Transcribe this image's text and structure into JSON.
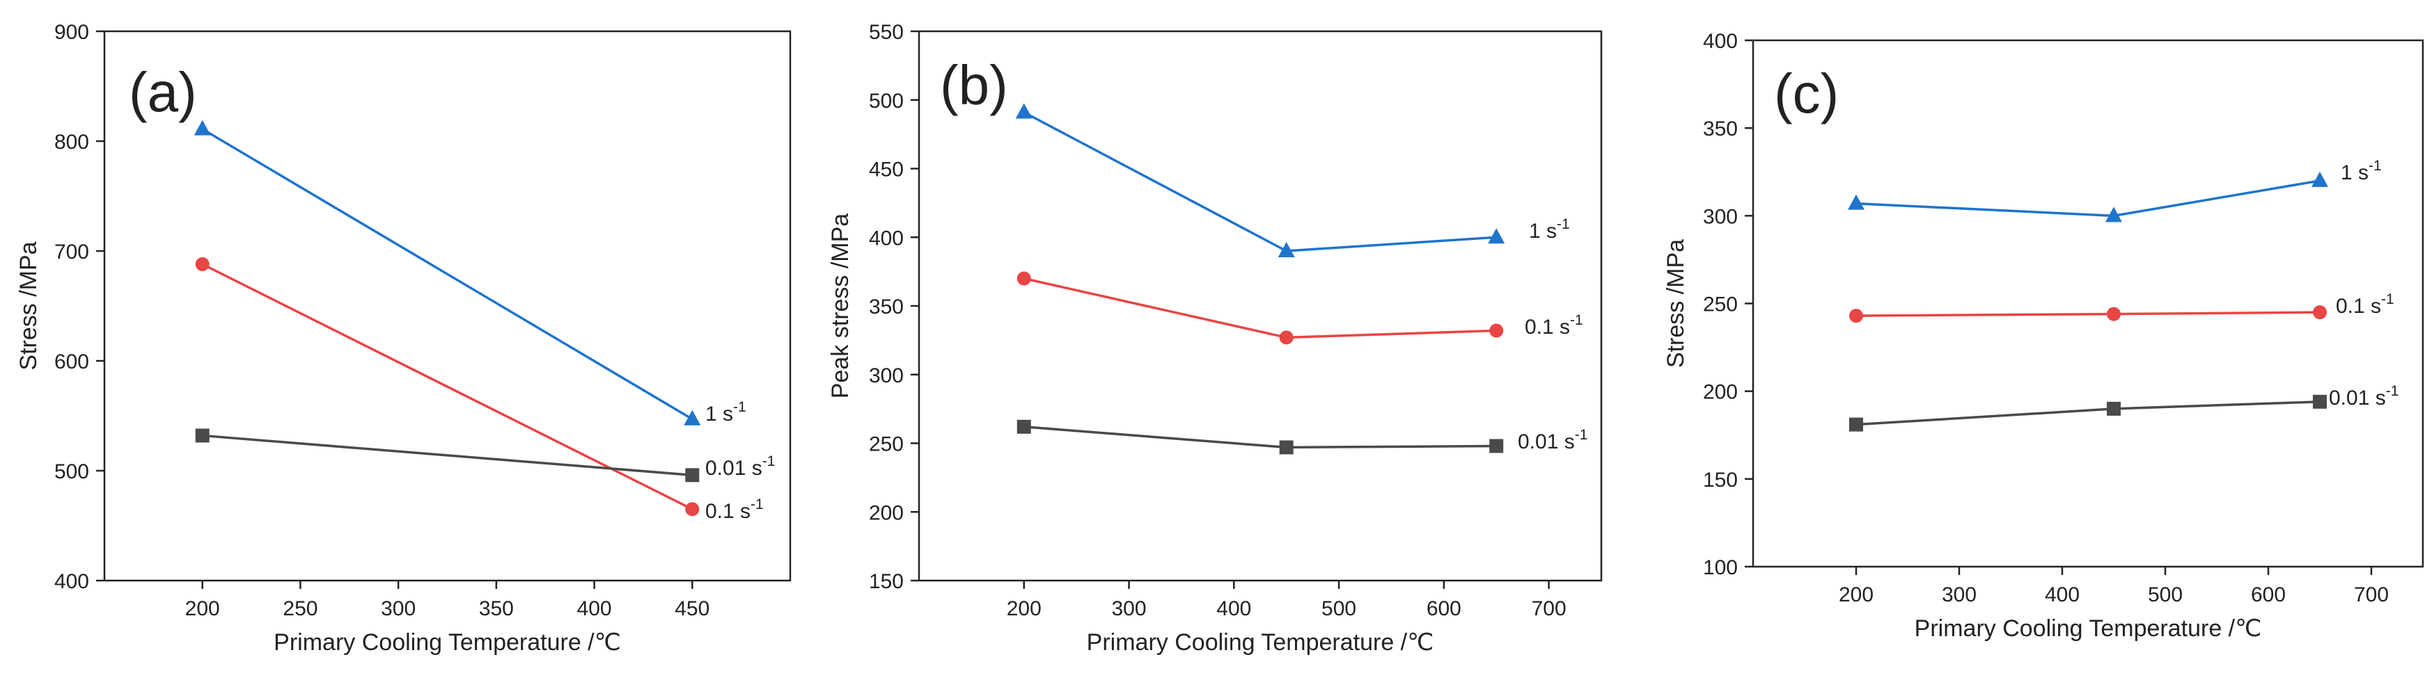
{
  "chart_data": [
    {
      "type": "line",
      "panel_label": "(a)",
      "xlabel": "Primary Cooling Temperature /℃",
      "ylabel": "Stress /MPa",
      "xlim": [
        150,
        500
      ],
      "ylim": [
        400,
        900
      ],
      "xticks": [
        200,
        250,
        300,
        350,
        400,
        450
      ],
      "yticks": [
        400,
        500,
        600,
        700,
        800,
        900
      ],
      "series": [
        {
          "name": "1 s",
          "exponent": "-1",
          "color": "#1f74cc",
          "marker": "triangle",
          "x": [
            200,
            450
          ],
          "values": [
            811,
            547
          ]
        },
        {
          "name": "0.1 s",
          "exponent": "-1",
          "color": "#e84545",
          "marker": "circle",
          "x": [
            200,
            450
          ],
          "values": [
            688,
            465
          ]
        },
        {
          "name": "0.01 s",
          "exponent": "-1",
          "color": "#4a4a4a",
          "marker": "square",
          "x": [
            200,
            450
          ],
          "values": [
            532,
            496
          ]
        }
      ]
    },
    {
      "type": "line",
      "panel_label": "(b)",
      "xlabel": "Primary Cooling Temperature /℃",
      "ylabel": "Peak stress /MPa",
      "xlim": [
        100,
        750
      ],
      "ylim": [
        150,
        550
      ],
      "xticks": [
        200,
        300,
        400,
        500,
        600,
        700
      ],
      "yticks": [
        150,
        200,
        250,
        300,
        350,
        400,
        450,
        500,
        550
      ],
      "series": [
        {
          "name": "1 s",
          "exponent": "-1",
          "color": "#1f74cc",
          "marker": "triangle",
          "x": [
            200,
            450,
            650
          ],
          "values": [
            491,
            390,
            400
          ]
        },
        {
          "name": "0.1 s",
          "exponent": "-1",
          "color": "#e84545",
          "marker": "circle",
          "x": [
            200,
            450,
            650
          ],
          "values": [
            370,
            327,
            332
          ]
        },
        {
          "name": "0.01 s",
          "exponent": "-1",
          "color": "#4a4a4a",
          "marker": "square",
          "x": [
            200,
            450,
            650
          ],
          "values": [
            262,
            247,
            248
          ]
        }
      ]
    },
    {
      "type": "line",
      "panel_label": "(c)",
      "xlabel": "Primary Cooling Temperature /℃",
      "ylabel": "Stress /MPa",
      "xlim": [
        100,
        750
      ],
      "ylim": [
        100,
        400
      ],
      "xticks": [
        200,
        300,
        400,
        500,
        600,
        700
      ],
      "yticks": [
        100,
        150,
        200,
        250,
        300,
        350,
        400
      ],
      "series": [
        {
          "name": "1 s",
          "exponent": "-1",
          "color": "#1f74cc",
          "marker": "triangle",
          "x": [
            200,
            450,
            650
          ],
          "values": [
            307,
            300,
            320
          ]
        },
        {
          "name": "0.1 s",
          "exponent": "-1",
          "color": "#e84545",
          "marker": "circle",
          "x": [
            200,
            450,
            650
          ],
          "values": [
            243,
            244,
            245
          ]
        },
        {
          "name": "0.01 s",
          "exponent": "-1",
          "color": "#4a4a4a",
          "marker": "square",
          "x": [
            200,
            450,
            650
          ],
          "values": [
            181,
            190,
            194
          ]
        }
      ]
    }
  ]
}
